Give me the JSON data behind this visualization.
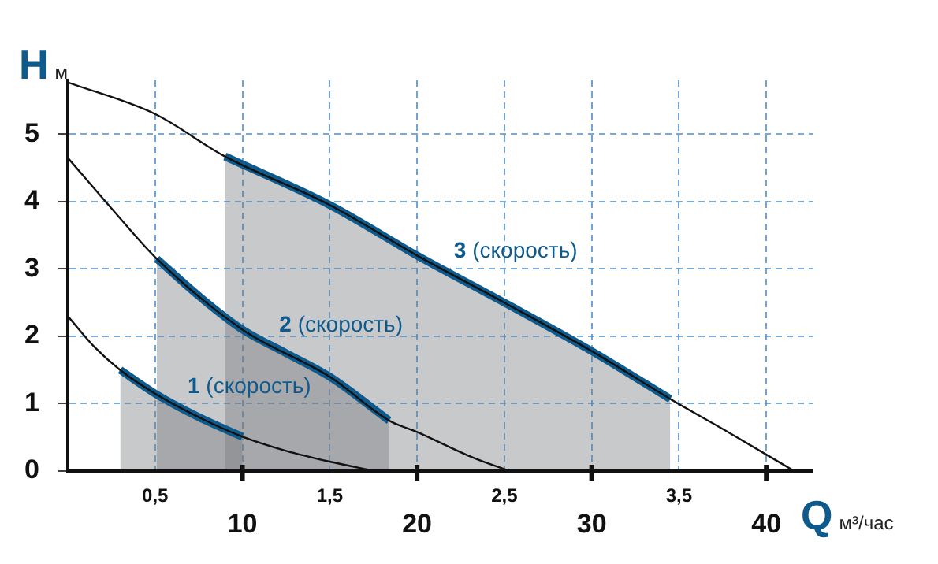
{
  "chart_data": {
    "type": "line",
    "xlabel": "Qм³/час",
    "ylabel": "Hм",
    "xlim": [
      0,
      42.7
    ],
    "ylim": [
      0,
      5.8
    ],
    "xticks": [
      10,
      20,
      30,
      40
    ],
    "x2lim": [
      0,
      4.27
    ],
    "x2ticks": [
      {
        "value": 0.5,
        "label": "0,5"
      },
      {
        "value": 1.5,
        "label": "1,5"
      },
      {
        "value": 2.5,
        "label": "2,5"
      },
      {
        "value": 3.5,
        "label": "3,5"
      }
    ],
    "yticks": [
      0,
      1,
      2,
      3,
      4,
      5
    ],
    "grid": true,
    "marker": "none",
    "line_style": "solid",
    "series": [
      {
        "type": "line",
        "color": "#111111",
        "x": [
          0,
          1.5,
          3,
          5,
          7.5,
          10,
          12.5,
          15,
          17.6
        ],
        "values": [
          2.3,
          1.85,
          1.5,
          1.15,
          0.8,
          0.51,
          0.3,
          0.14,
          0
        ]
      },
      {
        "type": "line",
        "color": "#111111",
        "x": [
          0,
          2.5,
          5.1,
          10,
          15,
          18.4,
          20,
          23.2,
          25.3
        ],
        "values": [
          4.65,
          3.9,
          3.15,
          2.1,
          1.4,
          0.75,
          0.58,
          0.2,
          0
        ]
      },
      {
        "type": "line",
        "color": "#111111",
        "x": [
          0,
          5,
          9,
          15,
          20,
          25,
          30,
          34.5,
          38,
          41.6
        ],
        "values": [
          5.77,
          5.3,
          4.67,
          3.95,
          3.2,
          2.5,
          1.78,
          1.07,
          0.55,
          0
        ]
      },
      {
        "type": "area",
        "name": "1 (скорость)",
        "color": "#0e5a8c",
        "x": [
          3,
          5,
          7.5,
          10
        ],
        "values": [
          1.5,
          1.15,
          0.8,
          0.51
        ]
      },
      {
        "type": "area",
        "name": "2 (скорость)",
        "color": "#0e5a8c",
        "x": [
          5.1,
          7.5,
          10,
          12.5,
          15,
          18.4
        ],
        "values": [
          3.15,
          2.6,
          2.1,
          1.75,
          1.4,
          0.75
        ]
      },
      {
        "type": "area",
        "name": "3 (скорость)",
        "color": "#0e5a8c",
        "x": [
          9,
          15,
          20,
          25,
          30,
          34.5
        ],
        "values": [
          4.67,
          3.95,
          3.2,
          2.5,
          1.78,
          1.07
        ]
      }
    ]
  }
}
